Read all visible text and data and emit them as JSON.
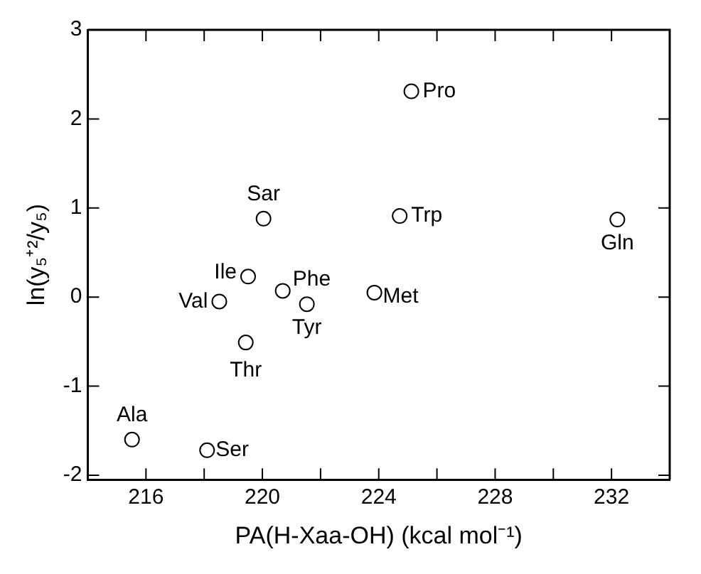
{
  "chart_data": {
    "type": "scatter",
    "xlabel": "PA(H-Xaa-OH) (kcal mol⁻¹)",
    "ylabel": "ln(y₅⁺²/y₅)",
    "x": [
      225.12,
      220.04,
      224.72,
      232.2,
      219.51,
      220.7,
      218.52,
      221.53,
      223.85,
      219.43,
      215.52,
      218.1
    ],
    "series": [
      {
        "color": "#000000",
        "values": [
          2.31,
          0.88,
          0.91,
          0.87,
          0.23,
          0.07,
          -0.05,
          -0.08,
          0.05,
          -0.51,
          -1.6,
          -1.72
        ]
      }
    ],
    "marker": "circle",
    "xlim": [
      214,
      234
    ],
    "ylim": [
      -2.05,
      3
    ],
    "xticks": [
      216,
      {
        "value": 218,
        "label": null
      },
      220,
      {
        "value": 222,
        "label": null
      },
      224,
      {
        "value": 226,
        "label": null
      },
      228,
      {
        "value": 230,
        "label": null
      },
      232
    ],
    "yticks": [
      -2,
      -1,
      0,
      1,
      2,
      3
    ],
    "annotations": [
      {
        "text": "Pro",
        "x": 225.12,
        "y": 2.31
      },
      {
        "text": "Sar",
        "x": 220.04,
        "y": 0.88
      },
      {
        "text": "Trp",
        "x": 224.72,
        "y": 0.91
      },
      {
        "text": "Gln",
        "x": 232.2,
        "y": 0.87
      },
      {
        "text": "Ile",
        "x": 219.51,
        "y": 0.23
      },
      {
        "text": "Phe",
        "x": 220.7,
        "y": 0.07
      },
      {
        "text": "Val",
        "x": 218.52,
        "y": -0.05
      },
      {
        "text": "Tyr",
        "x": 221.53,
        "y": -0.08
      },
      {
        "text": "Met",
        "x": 223.85,
        "y": 0.05
      },
      {
        "text": "Thr",
        "x": 219.43,
        "y": -0.51
      },
      {
        "text": "Ala",
        "x": 215.52,
        "y": -1.6
      },
      {
        "text": "Ser",
        "x": 218.1,
        "y": -1.72
      }
    ]
  }
}
